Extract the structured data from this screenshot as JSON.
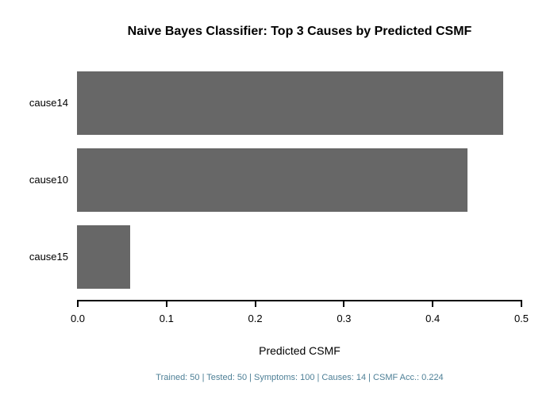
{
  "title": "Naive Bayes Classifier: Top 3 Causes by Predicted CSMF",
  "chart_data": {
    "type": "bar",
    "orientation": "horizontal",
    "categories": [
      "cause14",
      "cause10",
      "cause15"
    ],
    "values": [
      0.48,
      0.44,
      0.06
    ],
    "title": "Naive Bayes Classifier: Top 3 Causes by Predicted CSMF",
    "xlabel": "Predicted CSMF",
    "ylabel": "",
    "xlim": [
      0.0,
      0.5
    ],
    "x_ticks": [
      "0.0",
      "0.1",
      "0.2",
      "0.3",
      "0.4",
      "0.5"
    ],
    "bar_color": "#676767",
    "grid": false,
    "legend": false
  },
  "footer": {
    "text": "Trained: 50 | Tested: 50 | Symptoms: 100 | Causes: 14 | CSMF Acc.: 0.224",
    "color": "#4d7f96"
  }
}
